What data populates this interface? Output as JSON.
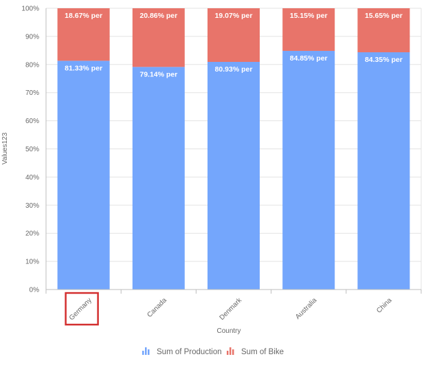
{
  "chart_data": {
    "type": "bar",
    "stacked": "100%",
    "categories": [
      "Germany",
      "Canada",
      "Denmark",
      "Australia",
      "China"
    ],
    "series": [
      {
        "name": "Sum of Production",
        "color": "#74a6fc",
        "values": [
          81.33,
          79.14,
          80.93,
          84.85,
          84.35
        ],
        "labels": [
          "81.33% per",
          "79.14% per",
          "80.93% per",
          "84.85% per",
          "84.35% per"
        ]
      },
      {
        "name": "Sum of Bike",
        "color": "#e8746a",
        "values": [
          18.67,
          20.86,
          19.07,
          15.15,
          15.65
        ],
        "labels": [
          "18.67% per",
          "20.86% per",
          "19.07% per",
          "15.15% per",
          "15.65% per"
        ]
      }
    ],
    "yticks": [
      "0%",
      "10%",
      "20%",
      "30%",
      "40%",
      "50%",
      "60%",
      "70%",
      "80%",
      "90%",
      "100%"
    ],
    "ylim": [
      0,
      100
    ],
    "xlabel": "Country",
    "ylabel": "Values123",
    "grid": true,
    "legend_position": "bottom",
    "highlighted_category": "Germany",
    "highlight_color": "#d32f2f"
  }
}
